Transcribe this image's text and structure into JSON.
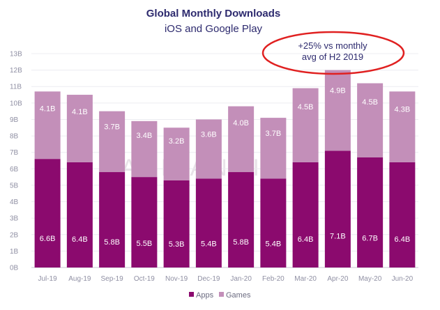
{
  "chart_data": {
    "type": "bar",
    "stacked": true,
    "title": "Global Monthly Downloads",
    "subtitle": "iOS and Google Play",
    "categories": [
      "Jul-19",
      "Aug-19",
      "Sep-19",
      "Oct-19",
      "Nov-19",
      "Dec-19",
      "Jan-20",
      "Feb-20",
      "Mar-20",
      "Apr-20",
      "May-20",
      "Jun-20"
    ],
    "series": [
      {
        "name": "Apps",
        "color": "#8b0a6e",
        "values": [
          6.6,
          6.4,
          5.8,
          5.5,
          5.3,
          5.4,
          5.8,
          5.4,
          6.4,
          7.1,
          6.7,
          6.4
        ],
        "labels": [
          "6.6B",
          "6.4B",
          "5.8B",
          "5.5B",
          "5.3B",
          "5.4B",
          "5.8B",
          "5.4B",
          "6.4B",
          "7.1B",
          "6.7B",
          "6.4B"
        ]
      },
      {
        "name": "Games",
        "color": "#c38fb9",
        "values": [
          4.1,
          4.1,
          3.7,
          3.4,
          3.2,
          3.6,
          4.0,
          3.7,
          4.5,
          4.9,
          4.5,
          4.3
        ],
        "labels": [
          "4.1B",
          "4.1B",
          "3.7B",
          "3.4B",
          "3.2B",
          "3.6B",
          "4.0B",
          "3.7B",
          "4.5B",
          "4.9B",
          "4.5B",
          "4.3B"
        ]
      }
    ],
    "yticks": [
      "0B",
      "1B",
      "2B",
      "3B",
      "4B",
      "5B",
      "6B",
      "7B",
      "8B",
      "9B",
      "10B",
      "11B",
      "12B",
      "13B"
    ],
    "ylim": [
      0,
      13
    ],
    "legend_position": "bottom-center",
    "annotation": {
      "line1": "+25% vs monthly",
      "line2": "avg of H2 2019",
      "target": "Apr-20",
      "color": "#e02020"
    },
    "watermark": "APP ANNIE"
  }
}
